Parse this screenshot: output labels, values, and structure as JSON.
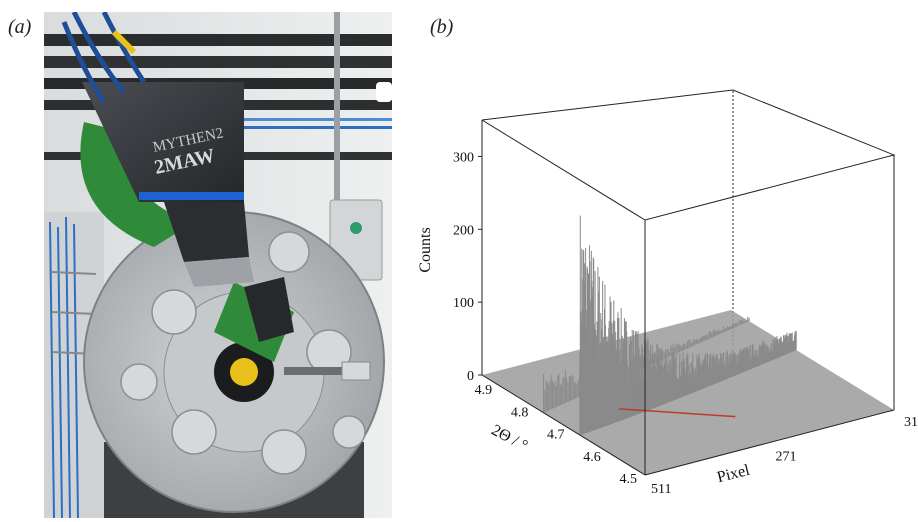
{
  "panels": {
    "a_label": "(a)",
    "b_label": "(b)"
  },
  "photo": {
    "detector_brand_text": "MYTHEN2",
    "detector_model_text": "2MAW"
  },
  "chart_data": {
    "type": "surface3d",
    "zlabel": "Counts",
    "ylabel": "2Θ / °",
    "xlabel": "Pixel",
    "z_ticks": [
      "0",
      "100",
      "200",
      "300"
    ],
    "theta_ticks": [
      "4.9",
      "4.8",
      "4.7",
      "4.6",
      "4.5"
    ],
    "pixel_ticks": [
      "511",
      "271",
      "31"
    ],
    "zlim": [
      0,
      350
    ],
    "theta_range": [
      4.5,
      4.95
    ],
    "pixel_range": [
      511,
      31
    ],
    "peak_counts": 320,
    "peak_theta": 4.68,
    "series_color": "#8a8a8a",
    "highlight_line_color": "#c0392b"
  },
  "colors": {
    "accent_green": "#2f8a3a",
    "detector_blue": "#1e63d6",
    "detector_body": "#3a3d42",
    "disc_gray": "#b8bbbf"
  }
}
